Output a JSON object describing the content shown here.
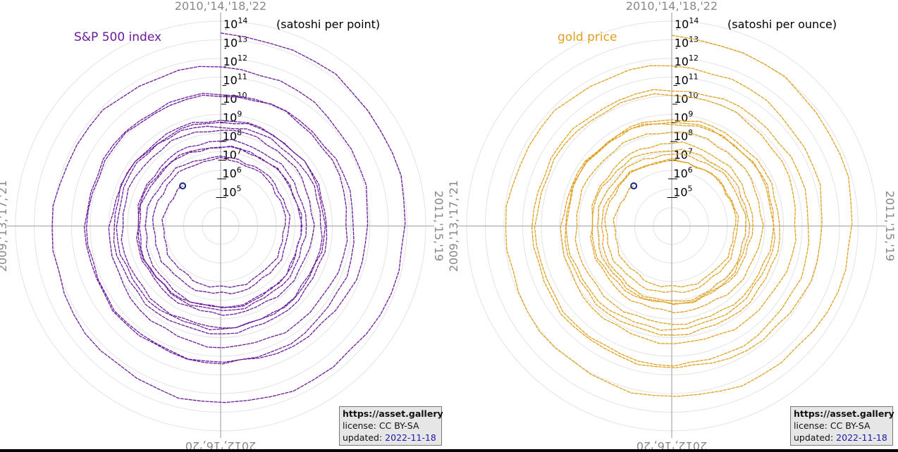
{
  "charts": [
    {
      "title": "S&P 500 index",
      "unit_label": "(satoshi per point)",
      "series_color": "#6a1b9a",
      "credit": {
        "site": "https://asset.gallery",
        "license": "license: CC BY-SA",
        "updated_label": "updated: ",
        "updated_date": "2022-11-18"
      }
    },
    {
      "title": "gold price",
      "unit_label": "(satoshi per ounce)",
      "series_color": "#e0a020",
      "credit": {
        "site": "https://asset.gallery",
        "license": "license: CC BY-SA",
        "updated_label": "updated: ",
        "updated_date": "2022-11-18"
      }
    }
  ],
  "year_labels": {
    "top": "2010,'14,'18,'22",
    "right": "2011,'15,'19",
    "bottom": "2012,'16,'20",
    "left": "2009,'13,'17,'21"
  },
  "chart_data": [
    {
      "type": "line",
      "projection": "polar",
      "title": "S&P 500 index",
      "unit": "satoshi per point",
      "angular_axis": "year, clockwise, one revolution per year, starting at top",
      "radial_axis": {
        "scale": "log",
        "ticks": [
          "10^5",
          "10^6",
          "10^7",
          "10^8",
          "10^9",
          "10^10",
          "10^11",
          "10^12",
          "10^13",
          "10^14"
        ],
        "range": [
          10000,
          100000000000000
        ]
      },
      "series": [
        {
          "color": "#6a1b9a",
          "points": [
            {
              "date": "2010-01-01",
              "value": 20000000000000.0
            },
            {
              "date": "2010-07-01",
              "value": 3200000000000.0
            },
            {
              "date": "2011-01-01",
              "value": 350000000000.0
            },
            {
              "date": "2011-07-01",
              "value": 20000000000.0
            },
            {
              "date": "2012-01-01",
              "value": 10000000000.0
            },
            {
              "date": "2012-07-01",
              "value": 23000000000.0
            },
            {
              "date": "2013-01-01",
              "value": 13000000000.0
            },
            {
              "date": "2013-07-01",
              "value": 3300000000.0
            },
            {
              "date": "2014-01-01",
              "value": 220000000.0
            },
            {
              "date": "2014-07-01",
              "value": 330000000.0
            },
            {
              "date": "2015-01-01",
              "value": 400000000.0
            },
            {
              "date": "2015-07-01",
              "value": 600000000.0
            },
            {
              "date": "2016-01-01",
              "value": 500000000.0
            },
            {
              "date": "2016-07-01",
              "value": 280000000.0
            },
            {
              "date": "2017-01-01",
              "value": 150000000.0
            },
            {
              "date": "2017-07-01",
              "value": 55000000.0
            },
            {
              "date": "2018-01-01",
              "value": 18000000.0
            },
            {
              "date": "2018-07-01",
              "value": 23000000.0
            },
            {
              "date": "2019-01-01",
              "value": 40000000.0
            },
            {
              "date": "2019-07-01",
              "value": 35000000.0
            },
            {
              "date": "2020-01-01",
              "value": 17000000.0
            },
            {
              "date": "2020-07-01",
              "value": 26000000.0
            },
            {
              "date": "2021-01-01",
              "value": 5000000.0
            },
            {
              "date": "2021-07-01",
              "value": 4500000.0
            },
            {
              "date": "2022-01-01",
              "value": 4000000.0
            },
            {
              "date": "2022-07-01",
              "value": 2100000.0
            },
            {
              "date": "2022-11-18",
              "value": 950000.0
            }
          ]
        }
      ]
    },
    {
      "type": "line",
      "projection": "polar",
      "title": "gold price",
      "unit": "satoshi per ounce",
      "angular_axis": "year, clockwise, one revolution per year, starting at top",
      "radial_axis": {
        "scale": "log",
        "ticks": [
          "10^5",
          "10^6",
          "10^7",
          "10^8",
          "10^9",
          "10^10",
          "10^11",
          "10^12",
          "10^13",
          "10^14"
        ],
        "range": [
          10000,
          100000000000000
        ]
      },
      "series": [
        {
          "color": "#e0a020",
          "points": [
            {
              "date": "2010-01-01",
              "value": 15000000000000.0
            },
            {
              "date": "2010-07-01",
              "value": 1500000000000.0
            },
            {
              "date": "2011-01-01",
              "value": 400000000000.0
            },
            {
              "date": "2011-07-01",
              "value": 40000000000.0
            },
            {
              "date": "2012-01-01",
              "value": 20000000000.0
            },
            {
              "date": "2012-07-01",
              "value": 30000000000.0
            },
            {
              "date": "2013-01-01",
              "value": 12000000000.0
            },
            {
              "date": "2013-07-01",
              "value": 2000000000.0
            },
            {
              "date": "2014-01-01",
              "value": 320000000.0
            },
            {
              "date": "2014-07-01",
              "value": 350000000.0
            },
            {
              "date": "2015-01-01",
              "value": 550000000.0
            },
            {
              "date": "2015-07-01",
              "value": 700000000.0
            },
            {
              "date": "2016-01-01",
              "value": 400000000.0
            },
            {
              "date": "2016-07-01",
              "value": 180000000.0
            },
            {
              "date": "2017-01-01",
              "value": 120000000.0
            },
            {
              "date": "2017-07-01",
              "value": 40000000.0
            },
            {
              "date": "2018-01-01",
              "value": 12000000.0
            },
            {
              "date": "2018-07-01",
              "value": 15000000.0
            },
            {
              "date": "2019-01-01",
              "value": 30000000.0
            },
            {
              "date": "2019-07-01",
              "value": 15000000.0
            },
            {
              "date": "2020-01-01",
              "value": 7000000.0
            },
            {
              "date": "2020-07-01",
              "value": 12000000.0
            },
            {
              "date": "2021-01-01",
              "value": 3000000.0
            },
            {
              "date": "2021-07-01",
              "value": 4000000.0
            },
            {
              "date": "2022-01-01",
              "value": 3500000.0
            },
            {
              "date": "2022-07-01",
              "value": 2000000.0
            },
            {
              "date": "2022-11-18",
              "value": 950000.0
            }
          ]
        }
      ]
    }
  ]
}
